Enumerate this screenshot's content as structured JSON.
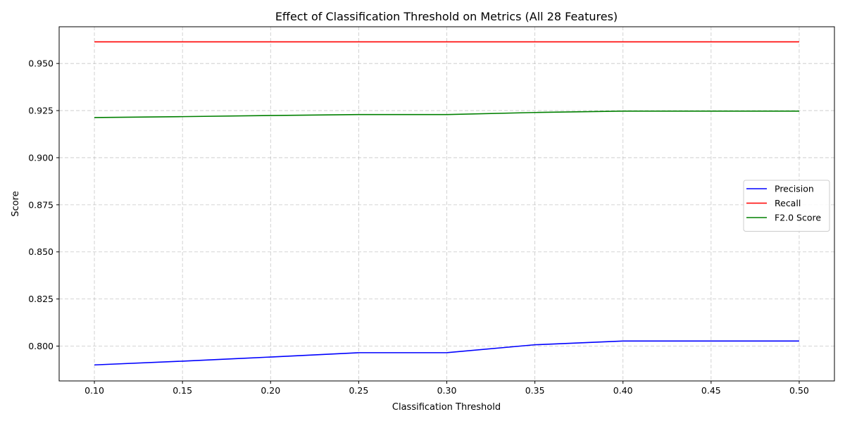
{
  "chart_data": {
    "type": "line",
    "title": "Effect of Classification Threshold on Metrics (All 28 Features)",
    "xlabel": "Classification Threshold",
    "ylabel": "Score",
    "x": [
      0.1,
      0.15,
      0.2,
      0.25,
      0.3,
      0.35,
      0.4,
      0.45,
      0.5
    ],
    "xlim": [
      0.08,
      0.52
    ],
    "ylim": [
      0.7815,
      0.9695
    ],
    "x_ticks": [
      0.1,
      0.15,
      0.2,
      0.25,
      0.3,
      0.35,
      0.4,
      0.45,
      0.5
    ],
    "x_tick_labels": [
      "0.10",
      "0.15",
      "0.20",
      "0.25",
      "0.30",
      "0.35",
      "0.40",
      "0.45",
      "0.50"
    ],
    "y_ticks": [
      0.8,
      0.825,
      0.85,
      0.875,
      0.9,
      0.925,
      0.95
    ],
    "y_tick_labels": [
      "0.800",
      "0.825",
      "0.850",
      "0.875",
      "0.900",
      "0.925",
      "0.950"
    ],
    "grid": true,
    "legend_position": "center-right",
    "series": [
      {
        "name": "Precision",
        "color": "#0000ff",
        "values": [
          0.79,
          0.792,
          0.7942,
          0.7965,
          0.7965,
          0.8007,
          0.8027,
          0.8027,
          0.8027
        ]
      },
      {
        "name": "Recall",
        "color": "#ff0000",
        "values": [
          0.9615,
          0.9615,
          0.9615,
          0.9615,
          0.9615,
          0.9615,
          0.9615,
          0.9615,
          0.9615
        ]
      },
      {
        "name": "F2.0 Score",
        "color": "#008000",
        "values": [
          0.9213,
          0.9218,
          0.9224,
          0.9229,
          0.9229,
          0.924,
          0.9247,
          0.9247,
          0.9247
        ]
      }
    ]
  }
}
